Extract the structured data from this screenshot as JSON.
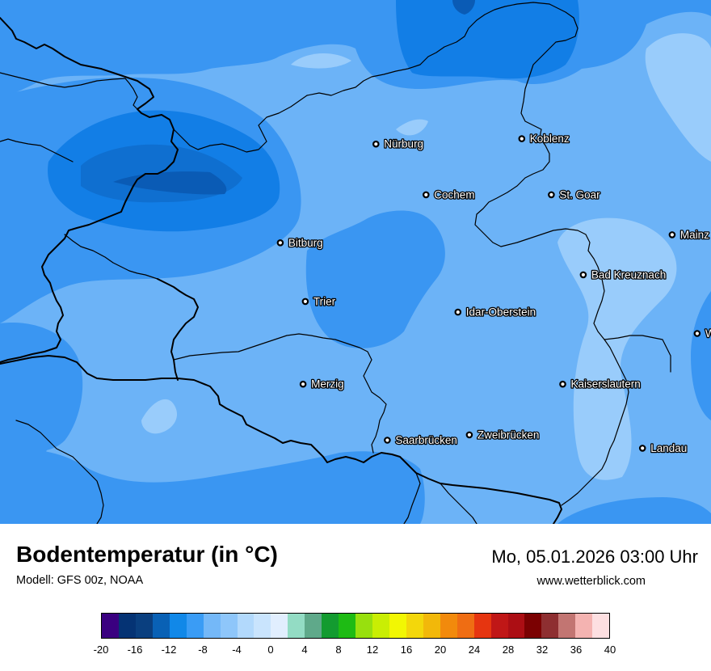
{
  "map": {
    "cities": [
      {
        "name": "Nürburg",
        "lon": 6.95,
        "lat": 50.34
      },
      {
        "name": "Koblenz",
        "lon": 7.59,
        "lat": 50.36
      },
      {
        "name": "Cochem",
        "lon": 7.17,
        "lat": 50.15
      },
      {
        "name": "St. Goar",
        "lon": 7.72,
        "lat": 50.15
      },
      {
        "name": "Bitburg",
        "lon": 6.53,
        "lat": 49.97
      },
      {
        "name": "Mainz",
        "lon": 8.25,
        "lat": 50.0
      },
      {
        "name": "Bad Kreuznach",
        "lon": 7.86,
        "lat": 49.85
      },
      {
        "name": "Trier",
        "lon": 6.64,
        "lat": 49.75
      },
      {
        "name": "Idar-Oberstein",
        "lon": 7.31,
        "lat": 49.71
      },
      {
        "name": "Worms",
        "lon": 8.36,
        "lat": 49.63
      },
      {
        "name": "Merzig",
        "lon": 6.63,
        "lat": 49.44
      },
      {
        "name": "Kaiserslautern",
        "lon": 7.77,
        "lat": 49.44
      },
      {
        "name": "Saarbrücken",
        "lon": 7.0,
        "lat": 49.23
      },
      {
        "name": "Zweibrücken",
        "lon": 7.36,
        "lat": 49.25
      },
      {
        "name": "Landau",
        "lon": 8.12,
        "lat": 49.2
      }
    ],
    "field_colors": {
      "minus_16_to_14": "#0a5bb5",
      "minus_14_to_12": "#0f6fd0",
      "minus_12_to_10": "#127ee6",
      "minus_10_to_8": "#3a96f2",
      "minus_8_to_6": "#6cb3f7",
      "minus_6_to_4": "#99ccfb"
    }
  },
  "header": {
    "title": "Bodentemperatur (in °C)",
    "model": "Modell: GFS 00z, NOAA",
    "datetime": "Mo, 05.01.2026 03:00 Uhr",
    "website": "www.wetterblick.com"
  },
  "legend": {
    "colors": [
      "#3a0080",
      "#053374",
      "#0a3f7f",
      "#0961b5",
      "#1188e8",
      "#3a9cf5",
      "#74b8f8",
      "#8ec6fa",
      "#b2d9fc",
      "#c9e4fd",
      "#e1eefe",
      "#93dcc4",
      "#5fa98a",
      "#139b30",
      "#1ebb14",
      "#98e00e",
      "#c9ee04",
      "#f2f703",
      "#f3d70b",
      "#f2b80a",
      "#f28a0c",
      "#ef6d13",
      "#e63510",
      "#c01717",
      "#ac0e14",
      "#7b0102",
      "#8e2f31",
      "#c27572",
      "#f4b3b1",
      "#fddfe1"
    ],
    "ticks": [
      "-20",
      "-16",
      "-12",
      "-8",
      "-4",
      "0",
      "4",
      "8",
      "12",
      "16",
      "20",
      "24",
      "28",
      "32",
      "36",
      "40"
    ]
  }
}
